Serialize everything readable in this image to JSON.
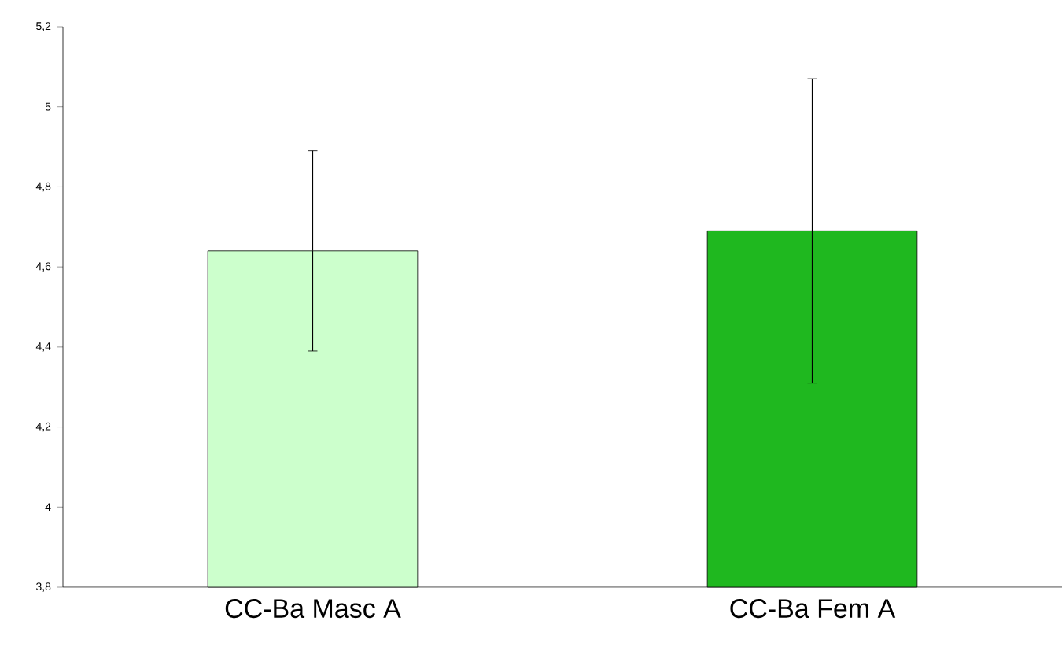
{
  "chart_data": {
    "type": "bar",
    "categories": [
      "CC-Ba Masc A",
      "CC-Ba Fem A"
    ],
    "values": [
      4.64,
      4.69
    ],
    "errors": [
      0.25,
      0.38
    ],
    "colors": [
      "#ccffcc",
      "#1fb81f"
    ],
    "ylim": [
      3.8,
      5.2
    ],
    "yticks": [
      {
        "value": 3.8,
        "label": "3,8"
      },
      4,
      {
        "value": 4.2,
        "label": "4,2"
      },
      {
        "value": 4.4,
        "label": "4,4"
      },
      {
        "value": 4.6,
        "label": "4,6"
      },
      {
        "value": 4.8,
        "label": "4,8"
      },
      5,
      {
        "value": 5.2,
        "label": "5,2"
      }
    ],
    "grid": false
  }
}
